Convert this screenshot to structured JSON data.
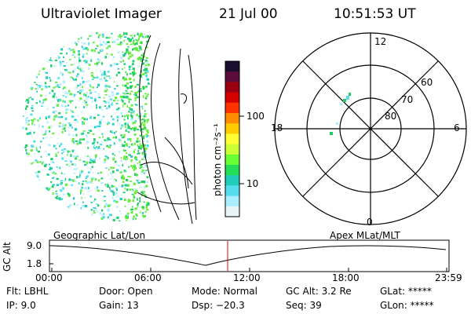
{
  "header": {
    "title": "Ultraviolet Imager",
    "date": "21 Jul 00",
    "time": "10:51:53 UT"
  },
  "colorbar": {
    "label": "photon cm⁻²s⁻¹",
    "ticks": [
      "100",
      "10"
    ],
    "colors": [
      "#1a0d2e",
      "#5a0d3a",
      "#9a0010",
      "#d40000",
      "#ff3300",
      "#ff8c00",
      "#ffcc00",
      "#ffff33",
      "#ccff33",
      "#66ff33",
      "#22dd55",
      "#22ccbb",
      "#55ddee",
      "#aaeeff",
      "#e8f4f8"
    ]
  },
  "polar_plot": {
    "mlt_labels": {
      "top": "12",
      "left": "18",
      "right": "6",
      "bottom": "0"
    },
    "lat_labels": [
      "60",
      "70",
      "80"
    ]
  },
  "timeline": {
    "left_title": "Geographic Lat/Lon",
    "right_title": "Apex MLat/MLT",
    "axis_label": "GC Alt",
    "y_ticks": [
      "9.0",
      "1.8"
    ],
    "x_ticks": [
      "00:00",
      "06:00",
      "12:00",
      "18:00",
      "23:59"
    ],
    "marker_color": "#e00000"
  },
  "info": {
    "flt": "Flt: LBHL",
    "ip": "IP:  9.0",
    "door": "Door: Open",
    "gain": "Gain: 13",
    "mode": "Mode: Normal",
    "dsp": "Dsp:  −20.3",
    "gcalt": "GC Alt: 3.2 Re",
    "seq": "Seq: 39",
    "glat": "GLat: *****",
    "glon": "GLon: *****"
  }
}
